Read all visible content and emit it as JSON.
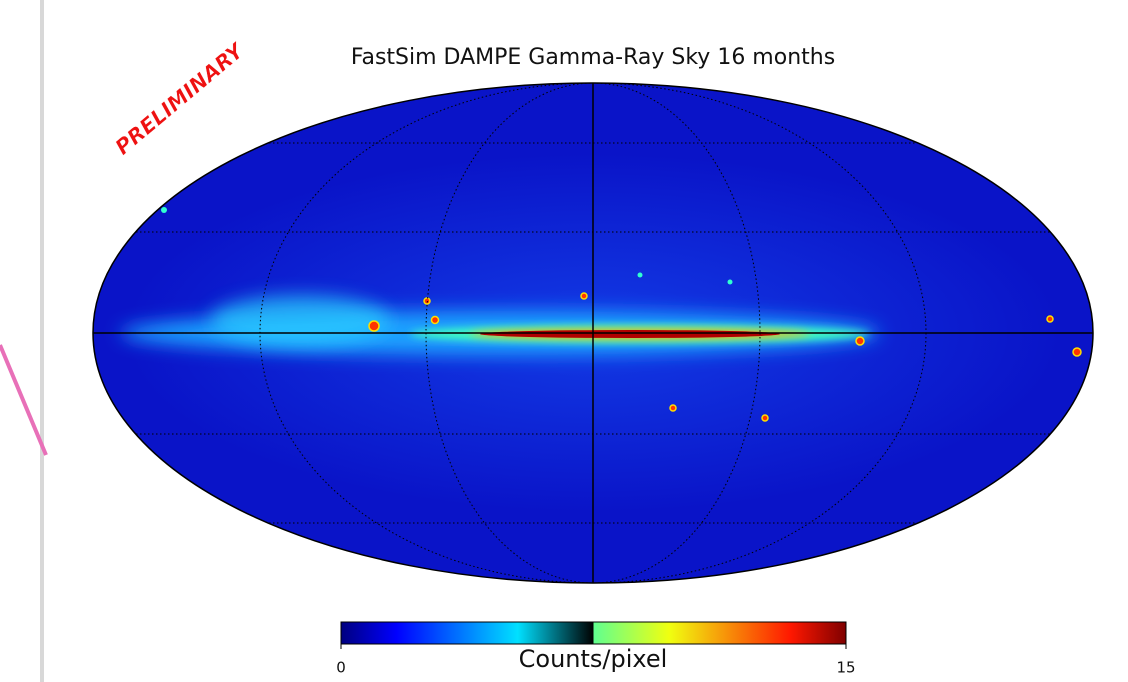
{
  "title": "FastSim DAMPE Gamma-Ray Sky 16 months",
  "watermark": "PRELIMINARY",
  "colorbar": {
    "label": "Counts/pixel",
    "range": [
      0,
      15
    ],
    "ticks": [
      0,
      15
    ]
  }
}
